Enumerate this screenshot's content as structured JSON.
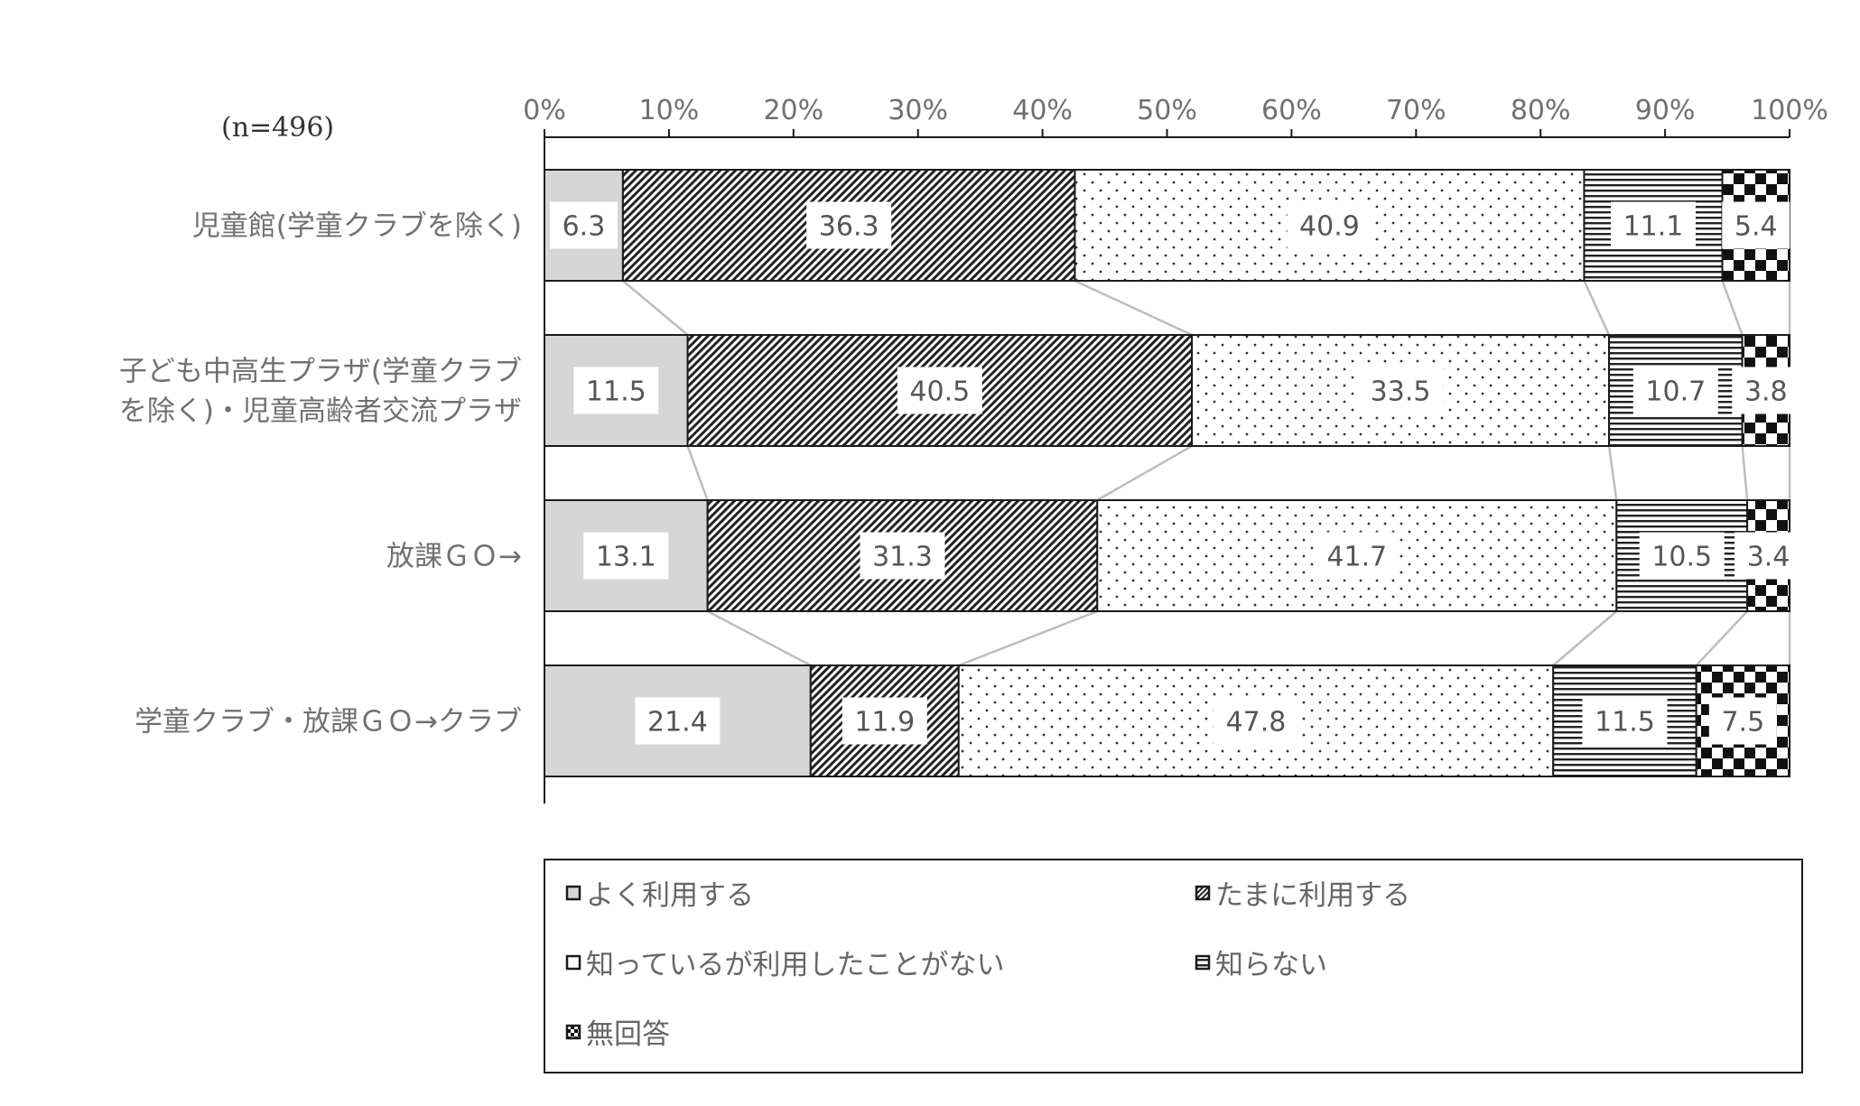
{
  "chart_data": {
    "type": "bar",
    "stacked": true,
    "orientation": "horizontal",
    "percent_axis": true,
    "note": "(n=496)",
    "categories": [
      [
        "児童館(学童クラブを除く)"
      ],
      [
        "子ども中高生プラザ(学童クラブ",
        "を除く)・児童高齢者交流プラザ"
      ],
      [
        "放課ＧＯ→"
      ],
      [
        "学童クラブ・放課ＧＯ→クラブ"
      ]
    ],
    "x_ticks": [
      "0%",
      "10%",
      "20%",
      "30%",
      "40%",
      "50%",
      "60%",
      "70%",
      "80%",
      "90%",
      "100%"
    ],
    "xlim": [
      0,
      100
    ],
    "series": [
      {
        "name": "よく利用する",
        "pattern": "solid-gray",
        "values": [
          6.3,
          11.5,
          13.1,
          21.4
        ]
      },
      {
        "name": "たまに利用する",
        "pattern": "diagonal",
        "values": [
          36.3,
          40.5,
          31.3,
          11.9
        ]
      },
      {
        "name": "知っているが利用したことがない",
        "pattern": "dots",
        "values": [
          40.9,
          33.5,
          41.7,
          47.8
        ]
      },
      {
        "name": "知らない",
        "pattern": "horizontal",
        "values": [
          11.1,
          10.7,
          10.5,
          11.5
        ]
      },
      {
        "name": "無回答",
        "pattern": "checker",
        "values": [
          5.4,
          3.8,
          3.4,
          7.5
        ]
      }
    ],
    "value_labels": [
      [
        "6.3",
        "36.3",
        "40.9",
        "11.1",
        "5.4"
      ],
      [
        "11.5",
        "40.5",
        "33.5",
        "10.7",
        "3.8"
      ],
      [
        "13.1",
        "31.3",
        "41.7",
        "10.5",
        "3.4"
      ],
      [
        "21.4",
        "11.9",
        "47.8",
        "11.5",
        "7.5"
      ]
    ],
    "series_lines": true,
    "legend_position": "bottom",
    "colors": {
      "text": "#707070",
      "bar_outline": "#1a1a1a",
      "solid_gray": "#d6d6d6",
      "series_line": "#bdbdbd"
    }
  }
}
